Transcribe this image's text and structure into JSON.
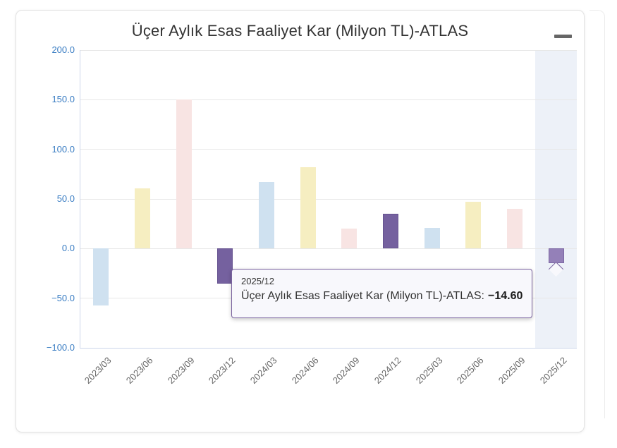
{
  "card": {
    "background": "#ffffff",
    "border_color": "#e2e2e2"
  },
  "menu": {
    "icon": "hamburger-icon"
  },
  "chart_data": {
    "type": "bar",
    "title": "Üçer Aylık Esas Faaliyet Kar (Milyon TL)-ATLAS",
    "xlabel": "",
    "ylabel": "",
    "categories": [
      "2023/03",
      "2023/06",
      "2023/09",
      "2023/12",
      "2024/03",
      "2024/06",
      "2024/09",
      "2024/12",
      "2025/03",
      "2025/06",
      "2025/09",
      "2025/12"
    ],
    "values": [
      -57,
      61,
      150,
      -35,
      67,
      82,
      20,
      35,
      21,
      47,
      40,
      -14.6
    ],
    "point_colors": [
      "#cfe1f0",
      "#f6eec1",
      "#f8e4e3",
      "#75619f",
      "#cfe1f0",
      "#f6eec1",
      "#f8e4e3",
      "#75619f",
      "#cfe1f0",
      "#f6eec1",
      "#f8e4e3",
      "#9480b8"
    ],
    "point_border_colors": [
      null,
      null,
      null,
      "#665390",
      null,
      null,
      null,
      "#665390",
      null,
      null,
      null,
      "#7c68a3"
    ],
    "ylim": [
      -100,
      200
    ],
    "ytick_values": [
      200,
      150,
      100,
      50,
      0,
      -50,
      -100
    ],
    "ytick_labels": [
      "200.0",
      "150.0",
      "100.0",
      "50.0",
      "0.0",
      "−50.0",
      "−100.0"
    ],
    "grid": true,
    "legend": false,
    "highlight_index": 11,
    "colors": {
      "y_label": "#3a7dc3",
      "x_label": "#666666",
      "gridline": "#e7e7e7",
      "axis_line": "#ccd6eb",
      "hover_band": "#edf1f8",
      "title": "#333333",
      "tooltip_border": "#7a639f",
      "tooltip_background": "#f8f8fc"
    }
  },
  "tooltip": {
    "header": "2025/12",
    "series_label": "Üçer Aylık Esas Faaliyet Kar (Milyon TL)-ATLAS:",
    "value": "−14.60"
  }
}
